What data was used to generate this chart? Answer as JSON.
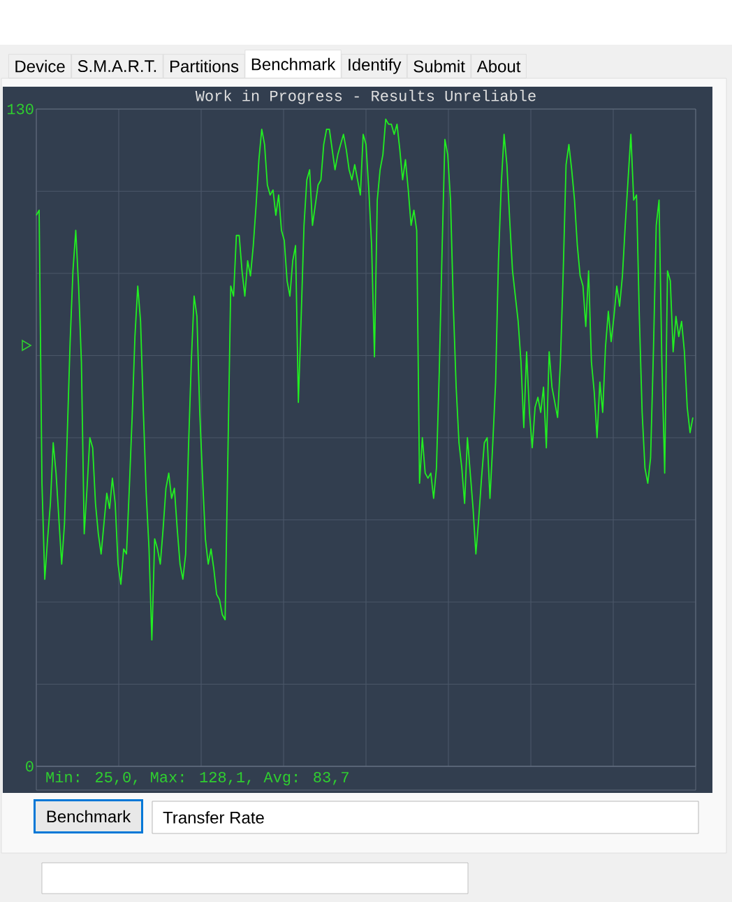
{
  "chart_data": {
    "type": "line",
    "title": "Work in Progress - Results Unreliable",
    "color": "#22ee22",
    "marker": "none",
    "line_style": "solid",
    "grid": true,
    "tick_labels": "y",
    "ylim": [
      0,
      130
    ],
    "yticks": [
      {
        "value": 0,
        "label": "0"
      },
      {
        "value": 16.25,
        "label": null
      },
      {
        "value": 32.5,
        "label": null
      },
      {
        "value": 48.75,
        "label": null
      },
      {
        "value": 65,
        "label": null
      },
      {
        "value": 81.25,
        "label": null
      },
      {
        "value": 97.5,
        "label": null
      },
      {
        "value": 113.75,
        "label": null
      },
      {
        "value": 130,
        "label": "130"
      }
    ],
    "annotations": [
      "Device",
      "S.M.A.R.T.",
      "Partitions",
      "Benchmark",
      "Identify",
      "Submit",
      "About",
      "Min: 25,0, Max: 128,1, Avg: 83,7",
      "Benchmark",
      "Transfer Rate"
    ],
    "categories": [
      null,
      null,
      null,
      null,
      null,
      null,
      null,
      null,
      null,
      null,
      null,
      null,
      null,
      null,
      null,
      null,
      null,
      null,
      null,
      null,
      null,
      null,
      null,
      null,
      null,
      null,
      null,
      null,
      null,
      null,
      null,
      null,
      null,
      null,
      null,
      null,
      null,
      null,
      null,
      null,
      null,
      null,
      null,
      null,
      null,
      null,
      null,
      null,
      null,
      null,
      null,
      null,
      null,
      null,
      null,
      null,
      null,
      null,
      null,
      null,
      null,
      null,
      null,
      null,
      null,
      null,
      null,
      null,
      null,
      null,
      null,
      null,
      null,
      null,
      null,
      null,
      null,
      null,
      null,
      null,
      null,
      null,
      null,
      null,
      null,
      null,
      null,
      null,
      null,
      null,
      null,
      null,
      null,
      null,
      null,
      null,
      null,
      null,
      null,
      null,
      null,
      null,
      null,
      null,
      null,
      null,
      null,
      null,
      null,
      null,
      null,
      null,
      null,
      null,
      null,
      null,
      null,
      null,
      null,
      null,
      null,
      null,
      null,
      null,
      null,
      null,
      null,
      null,
      null,
      null,
      null,
      null,
      null,
      null,
      null,
      null,
      null,
      null,
      null,
      null,
      null,
      null,
      null,
      null,
      null,
      null,
      null,
      null,
      null,
      null,
      null,
      null,
      null,
      null,
      null,
      null,
      null,
      null,
      null,
      null,
      null,
      null,
      null,
      null,
      null,
      null,
      null,
      null,
      null,
      null,
      null,
      null,
      null,
      null,
      null,
      null,
      null,
      null,
      null,
      null,
      null,
      null,
      null,
      null,
      null,
      null,
      null,
      null,
      null,
      null,
      null,
      null,
      null,
      null,
      null,
      null,
      null,
      null,
      null,
      null,
      null,
      null,
      null,
      null,
      null,
      null,
      null,
      null,
      null,
      null,
      null,
      null,
      null,
      null,
      null,
      null,
      null,
      null,
      null,
      null,
      null,
      null,
      null,
      null,
      null,
      null,
      null,
      null,
      null,
      null,
      null,
      null,
      null,
      null
    ],
    "values": [
      109,
      110,
      56,
      37,
      45,
      52,
      64,
      58,
      49,
      40,
      48,
      66,
      84,
      98,
      106,
      95,
      80,
      46,
      55,
      65,
      63,
      52,
      46,
      42,
      48,
      54,
      51,
      57,
      52,
      40,
      36,
      43,
      42,
      55,
      69,
      85,
      95,
      88,
      70,
      54,
      43,
      25,
      45,
      43,
      40,
      47,
      55,
      58,
      53,
      55,
      47,
      40,
      37,
      42,
      63,
      80,
      93,
      89,
      70,
      57,
      45,
      40,
      43,
      39,
      34,
      33,
      30,
      29,
      62,
      95,
      93,
      105,
      105,
      98,
      93,
      100,
      97,
      103,
      111,
      120,
      126,
      123,
      115,
      113,
      114,
      109,
      113,
      106,
      104,
      96,
      93,
      100,
      103,
      72,
      89,
      107,
      116,
      118,
      107,
      111,
      115,
      116,
      123,
      126,
      126,
      122,
      118,
      121,
      123,
      125,
      122,
      118,
      116,
      119,
      116,
      113,
      125,
      123,
      114,
      103,
      81,
      112,
      118,
      121,
      128,
      127,
      127,
      125,
      127,
      122,
      116,
      120,
      114,
      107,
      110,
      106,
      56,
      65,
      58,
      57,
      58,
      53,
      59,
      78,
      102,
      124,
      121,
      112,
      91,
      75,
      64,
      59,
      52,
      65,
      58,
      51,
      42,
      49,
      57,
      64,
      65,
      53,
      64,
      76,
      100,
      115,
      125,
      119,
      108,
      98,
      93,
      88,
      80,
      67,
      82,
      70,
      63,
      71,
      73,
      70,
      75,
      63,
      82,
      75,
      72,
      69,
      80,
      98,
      119,
      123,
      118,
      112,
      103,
      97,
      95,
      87,
      98,
      80,
      74,
      65,
      76,
      70,
      83,
      90,
      84,
      89,
      95,
      91,
      97,
      107,
      116,
      125,
      112,
      113,
      89,
      70,
      59,
      56,
      61,
      82,
      107,
      112,
      80,
      58,
      98,
      96,
      82,
      89,
      85,
      88,
      82,
      71,
      66,
      69
    ]
  }
}
